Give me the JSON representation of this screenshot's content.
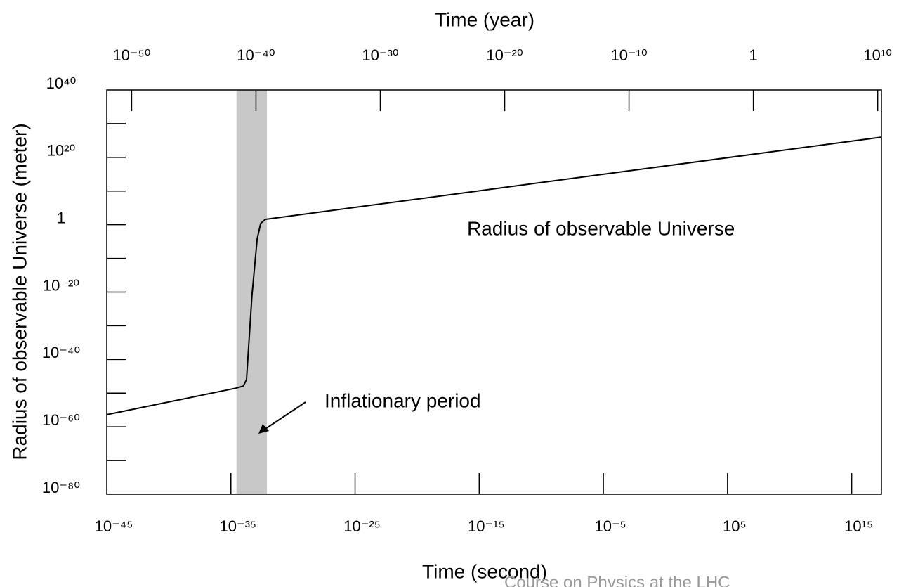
{
  "chart_data": {
    "type": "line",
    "x_label": "Time (second)",
    "x2_label": "Time (year)",
    "y_label": "Radius of observable Universe (meter)",
    "log_x": true,
    "log_y": true,
    "xlim": [
      1e-45,
      2.5e+17
    ],
    "xticks": [
      {
        "value": 1e-45,
        "label": "10⁻⁴⁵"
      },
      {
        "value": 1e-35,
        "label": "10⁻³⁵"
      },
      {
        "value": 1e-25,
        "label": "10⁻²⁵"
      },
      {
        "value": 1e-15,
        "label": "10⁻¹⁵"
      },
      {
        "value": 1e-05,
        "label": "10⁻⁵"
      },
      {
        "value": 100000.0,
        "label": "10⁵"
      },
      {
        "value": 1000000000000000.0,
        "label": "10¹⁵"
      }
    ],
    "x2lim": [
      1e-52,
      20000000000.0
    ],
    "x2ticks": [
      {
        "value": 1e-50,
        "label": "10⁻⁵⁰"
      },
      {
        "value": 1e-40,
        "label": "10⁻⁴⁰"
      },
      {
        "value": 1e-30,
        "label": "10⁻³⁰"
      },
      {
        "value": 1e-20,
        "label": "10⁻²⁰"
      },
      {
        "value": 1e-10,
        "label": "10⁻¹⁰"
      },
      1,
      {
        "value": 10000000000.0,
        "label": "10¹⁰"
      }
    ],
    "ylim": [
      1e-80,
      1e+40
    ],
    "yticks": [
      {
        "value": 1e+40,
        "label": "10⁴⁰"
      },
      {
        "value": 1e+20,
        "label": "10²⁰"
      },
      1,
      {
        "value": 1e-20,
        "label": "10⁻²⁰"
      },
      {
        "value": 1e-40,
        "label": "10⁻⁴⁰"
      },
      {
        "value": 1e-60,
        "label": "10⁻⁶⁰"
      },
      {
        "value": 1e-80,
        "label": "10⁻⁸⁰"
      }
    ],
    "y_minor_ticks": [
      1e+30,
      10000000000.0,
      1e-10,
      1e-30,
      1e-50,
      1e-70
    ],
    "shaded_region": [
      2.8e-35,
      8e-33
    ],
    "shade_color": "#c8c8c8",
    "series": [
      {
        "name": "Radius of observable Universe",
        "color": "#000000",
        "x": [
          1e-45,
          2.5e-35,
          1e-34,
          1.8e-34,
          5e-34,
          1.3e-33,
          2.5e-33,
          6e-33,
          2.5e+17
        ],
        "values": [
          4e-57,
          3e-49,
          1.3e-48,
          1e-46,
          1.3e-21,
          6e-05,
          2.5,
          40,
          1e+26
        ]
      }
    ],
    "annotation": "Inflationary period",
    "footer": "Course on Physics at the LHC"
  }
}
